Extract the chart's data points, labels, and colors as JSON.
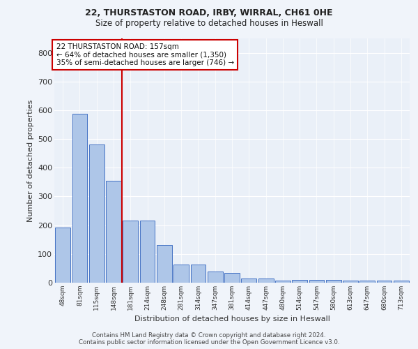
{
  "title_line1": "22, THURSTASTON ROAD, IRBY, WIRRAL, CH61 0HE",
  "title_line2": "Size of property relative to detached houses in Heswall",
  "xlabel": "Distribution of detached houses by size in Heswall",
  "ylabel": "Number of detached properties",
  "categories": [
    "48sqm",
    "81sqm",
    "115sqm",
    "148sqm",
    "181sqm",
    "214sqm",
    "248sqm",
    "281sqm",
    "314sqm",
    "347sqm",
    "381sqm",
    "414sqm",
    "447sqm",
    "480sqm",
    "514sqm",
    "547sqm",
    "580sqm",
    "613sqm",
    "647sqm",
    "680sqm",
    "713sqm"
  ],
  "values": [
    192,
    588,
    480,
    355,
    215,
    215,
    130,
    62,
    62,
    40,
    33,
    15,
    15,
    8,
    10,
    10,
    10,
    8,
    8,
    8,
    8
  ],
  "bar_color": "#aec6e8",
  "bar_edge_color": "#4472c4",
  "background_color": "#eaf0f8",
  "grid_color": "#ffffff",
  "vline_index": 3,
  "vline_color": "#cc0000",
  "annotation_text": "22 THURSTASTON ROAD: 157sqm\n← 64% of detached houses are smaller (1,350)\n35% of semi-detached houses are larger (746) →",
  "annotation_box_color": "#ffffff",
  "annotation_box_edge": "#cc0000",
  "ylim": [
    0,
    850
  ],
  "yticks": [
    0,
    100,
    200,
    300,
    400,
    500,
    600,
    700,
    800
  ],
  "footer_line1": "Contains HM Land Registry data © Crown copyright and database right 2024.",
  "footer_line2": "Contains public sector information licensed under the Open Government Licence v3.0.",
  "fig_bg": "#f0f4fa"
}
